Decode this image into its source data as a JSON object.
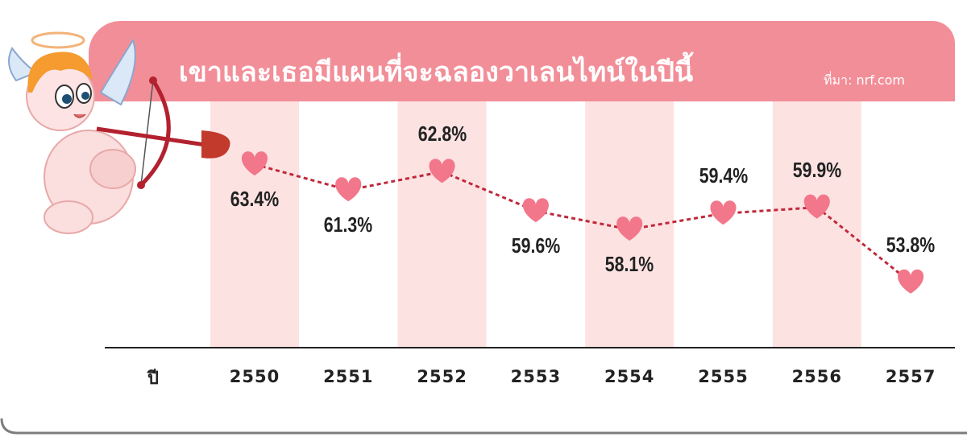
{
  "header": {
    "title": "เขาและเธอมีแผนที่จะฉลองวาเลนไทน์ในปีนี้",
    "source": "ที่มา: nrf.com"
  },
  "axis": {
    "x_prefix": "ปี"
  },
  "colors": {
    "banner": "#f28e98",
    "column_shade": "#fde2e2",
    "heart": "#f2778a",
    "line": "#c0283a",
    "card_border": "#7d7d7d",
    "text": "#222222"
  },
  "decoration": {
    "mascot": "cupid-with-bow-icon"
  },
  "chart_data": {
    "type": "line",
    "x": [
      "2550",
      "2551",
      "2552",
      "2553",
      "2554",
      "2555",
      "2556",
      "2557"
    ],
    "series": [
      {
        "values": [
          63.4,
          61.3,
          62.8,
          59.6,
          58.1,
          59.4,
          59.9,
          53.8
        ],
        "labels": [
          "63.4%",
          "61.3%",
          "62.8%",
          "59.6%",
          "58.1%",
          "59.4%",
          "59.9%",
          "53.8%"
        ]
      }
    ],
    "label_position": [
      "below",
      "below",
      "above",
      "below",
      "below",
      "above",
      "above",
      "above"
    ],
    "marker": "heart",
    "shaded_years": [
      "2550",
      "2552",
      "2554",
      "2556"
    ],
    "grid": false
  }
}
